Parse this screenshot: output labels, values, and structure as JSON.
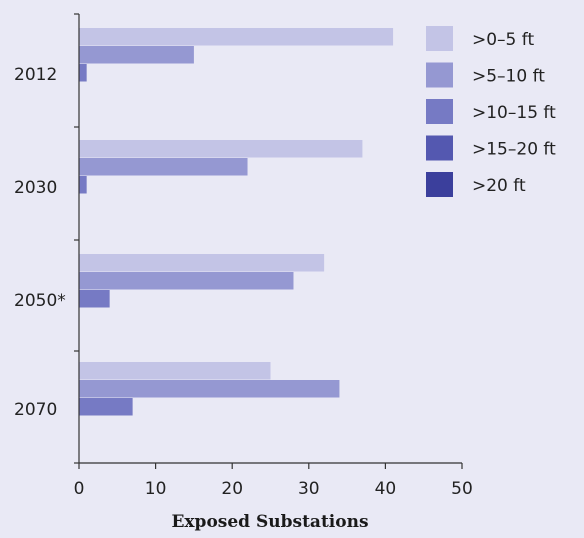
{
  "chart_data": {
    "type": "bar",
    "orientation": "horizontal",
    "title": "",
    "xlabel": "Exposed Substations",
    "ylabel": "",
    "xlim": [
      0,
      50
    ],
    "x_ticks": [
      "0",
      "10",
      "20",
      "30",
      "40",
      "50"
    ],
    "categories": [
      "2012",
      "2030",
      "2050*",
      "2070"
    ],
    "series": [
      {
        "name": ">0–5 ft",
        "color": "#c3c4e6",
        "values": [
          41,
          37,
          32,
          25
        ]
      },
      {
        "name": ">5–10 ft",
        "color": "#9598d2",
        "values": [
          15,
          22,
          28,
          34
        ]
      },
      {
        "name": ">10–15 ft",
        "color": "#767ac4",
        "values": [
          1,
          1,
          4,
          7
        ]
      },
      {
        "name": ">15–20 ft",
        "color": "#5458b0",
        "values": [
          0,
          0,
          0,
          0
        ]
      },
      {
        "name": ">20 ft",
        "color": "#3b3f9c",
        "values": [
          0,
          0,
          0,
          0
        ]
      }
    ],
    "grid": false,
    "legend_position": "top-right"
  }
}
